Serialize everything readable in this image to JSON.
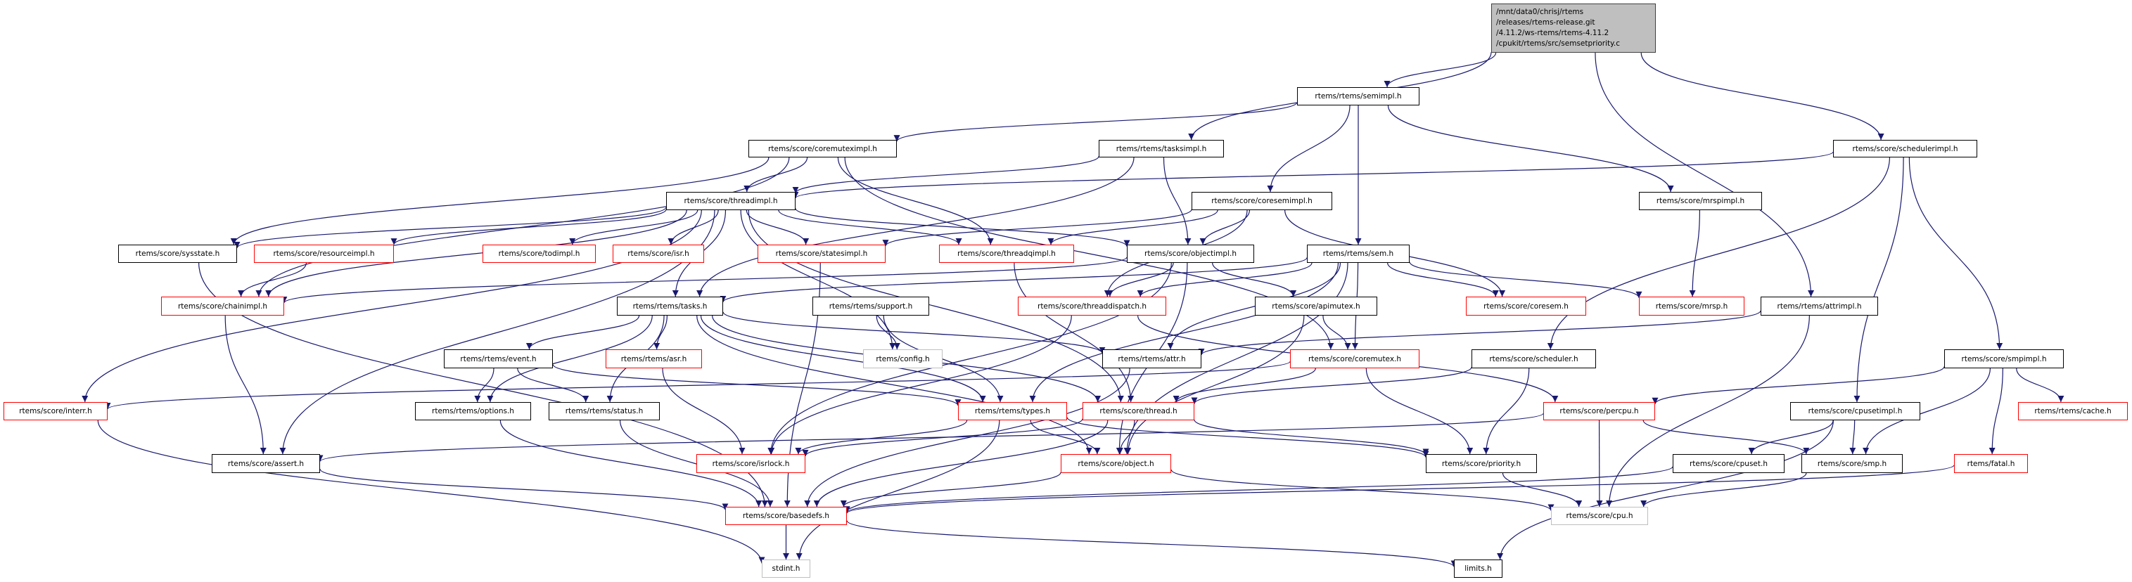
{
  "graph": {
    "edge_color": "#191970",
    "root": {
      "id": "root",
      "lines": [
        "/mnt/data0/chrisj/rtems",
        "/releases/rtems-release.git",
        "/4.11.2/ws-rtems/rtems-4.11.2",
        "/cpukit/rtems/src/semsetpriority.c"
      ],
      "fill": "#bfbfbf"
    },
    "node_styles": {
      "documented": "#000000",
      "truncated": "#ff0000",
      "system": "#bfbfbf"
    },
    "nodes": [
      {
        "id": "semimpl",
        "label": "rtems/rtems/semimpl.h",
        "style": "documented"
      },
      {
        "id": "tasksimpl",
        "label": "rtems/rtems/tasksimpl.h",
        "style": "documented"
      },
      {
        "id": "schedulerimpl",
        "label": "rtems/score/schedulerimpl.h",
        "style": "documented"
      },
      {
        "id": "coremuteximpl",
        "label": "rtems/score/coremuteximpl.h",
        "style": "documented"
      },
      {
        "id": "coresemimpl",
        "label": "rtems/score/coresemimpl.h",
        "style": "documented"
      },
      {
        "id": "mrspimpl",
        "label": "rtems/score/mrspimpl.h",
        "style": "documented"
      },
      {
        "id": "threadimpl",
        "label": "rtems/score/threadimpl.h",
        "style": "documented"
      },
      {
        "id": "objectimpl",
        "label": "rtems/score/objectimpl.h",
        "style": "documented"
      },
      {
        "id": "sem",
        "label": "rtems/rtems/sem.h",
        "style": "documented"
      },
      {
        "id": "sysstate",
        "label": "rtems/score/sysstate.h",
        "style": "documented"
      },
      {
        "id": "resourceimpl",
        "label": "rtems/score/resourceimpl.h",
        "style": "truncated"
      },
      {
        "id": "todimpl",
        "label": "rtems/score/todimpl.h",
        "style": "truncated"
      },
      {
        "id": "isr",
        "label": "rtems/score/isr.h",
        "style": "truncated"
      },
      {
        "id": "statesimpl",
        "label": "rtems/score/statesimpl.h",
        "style": "truncated"
      },
      {
        "id": "threadqimpl",
        "label": "rtems/score/threadqimpl.h",
        "style": "truncated"
      },
      {
        "id": "chainimpl",
        "label": "rtems/score/chainimpl.h",
        "style": "truncated"
      },
      {
        "id": "tasks",
        "label": "rtems/rtems/tasks.h",
        "style": "documented"
      },
      {
        "id": "support",
        "label": "rtems/rtems/support.h",
        "style": "documented"
      },
      {
        "id": "threaddispatch",
        "label": "rtems/score/threaddispatch.h",
        "style": "truncated"
      },
      {
        "id": "apimutex",
        "label": "rtems/score/apimutex.h",
        "style": "documented"
      },
      {
        "id": "coresem",
        "label": "rtems/score/coresem.h",
        "style": "truncated"
      },
      {
        "id": "mrsp",
        "label": "rtems/score/mrsp.h",
        "style": "truncated"
      },
      {
        "id": "attrimpl",
        "label": "rtems/rtems/attrimpl.h",
        "style": "documented"
      },
      {
        "id": "event",
        "label": "rtems/rtems/event.h",
        "style": "documented"
      },
      {
        "id": "asr",
        "label": "rtems/rtems/asr.h",
        "style": "truncated"
      },
      {
        "id": "config",
        "label": "rtems/config.h",
        "style": "system"
      },
      {
        "id": "attr",
        "label": "rtems/rtems/attr.h",
        "style": "documented"
      },
      {
        "id": "coremutex",
        "label": "rtems/score/coremutex.h",
        "style": "truncated"
      },
      {
        "id": "scheduler",
        "label": "rtems/score/scheduler.h",
        "style": "documented"
      },
      {
        "id": "smpimpl",
        "label": "rtems/score/smpimpl.h",
        "style": "documented"
      },
      {
        "id": "interr",
        "label": "rtems/score/interr.h",
        "style": "truncated"
      },
      {
        "id": "options",
        "label": "rtems/rtems/options.h",
        "style": "documented"
      },
      {
        "id": "status",
        "label": "rtems/rtems/status.h",
        "style": "documented"
      },
      {
        "id": "types",
        "label": "rtems/rtems/types.h",
        "style": "truncated"
      },
      {
        "id": "thread",
        "label": "rtems/score/thread.h",
        "style": "truncated"
      },
      {
        "id": "percpu",
        "label": "rtems/score/percpu.h",
        "style": "truncated"
      },
      {
        "id": "cpusetimpl",
        "label": "rtems/score/cpusetimpl.h",
        "style": "documented"
      },
      {
        "id": "cache",
        "label": "rtems/rtems/cache.h",
        "style": "truncated"
      },
      {
        "id": "assert",
        "label": "rtems/score/assert.h",
        "style": "documented"
      },
      {
        "id": "isrlock",
        "label": "rtems/score/isrlock.h",
        "style": "truncated"
      },
      {
        "id": "object",
        "label": "rtems/score/object.h",
        "style": "truncated"
      },
      {
        "id": "priority",
        "label": "rtems/score/priority.h",
        "style": "documented"
      },
      {
        "id": "cpuset",
        "label": "rtems/score/cpuset.h",
        "style": "documented"
      },
      {
        "id": "smp",
        "label": "rtems/score/smp.h",
        "style": "documented"
      },
      {
        "id": "fatal",
        "label": "rtems/fatal.h",
        "style": "truncated"
      },
      {
        "id": "basedefs",
        "label": "rtems/score/basedefs.h",
        "style": "truncated"
      },
      {
        "id": "cpu",
        "label": "rtems/score/cpu.h",
        "style": "system"
      },
      {
        "id": "stdint",
        "label": "stdint.h",
        "style": "system"
      },
      {
        "id": "limits",
        "label": "limits.h",
        "style": "documented"
      }
    ],
    "edges": [
      [
        "root",
        "semimpl"
      ],
      [
        "root",
        "tasksimpl"
      ],
      [
        "root",
        "schedulerimpl"
      ],
      [
        "root",
        "attrimpl"
      ],
      [
        "semimpl",
        "coremuteximpl"
      ],
      [
        "semimpl",
        "coresemimpl"
      ],
      [
        "semimpl",
        "sem"
      ],
      [
        "semimpl",
        "mrspimpl"
      ],
      [
        "tasksimpl",
        "threadimpl"
      ],
      [
        "tasksimpl",
        "objectimpl"
      ],
      [
        "tasksimpl",
        "tasks"
      ],
      [
        "schedulerimpl",
        "threadimpl"
      ],
      [
        "schedulerimpl",
        "scheduler"
      ],
      [
        "schedulerimpl",
        "cpusetimpl"
      ],
      [
        "schedulerimpl",
        "smpimpl"
      ],
      [
        "coremuteximpl",
        "threadimpl"
      ],
      [
        "coremuteximpl",
        "threadqimpl"
      ],
      [
        "coremuteximpl",
        "sysstate"
      ],
      [
        "coremuteximpl",
        "chainimpl"
      ],
      [
        "coremuteximpl",
        "coremutex"
      ],
      [
        "coresemimpl",
        "threadqimpl"
      ],
      [
        "coresemimpl",
        "objectimpl"
      ],
      [
        "coresemimpl",
        "statesimpl"
      ],
      [
        "coresemimpl",
        "coresem"
      ],
      [
        "coresemimpl",
        "threaddispatch"
      ],
      [
        "mrspimpl",
        "mrsp"
      ],
      [
        "threadimpl",
        "sysstate"
      ],
      [
        "threadimpl",
        "resourceimpl"
      ],
      [
        "threadimpl",
        "todimpl"
      ],
      [
        "threadimpl",
        "isr"
      ],
      [
        "threadimpl",
        "statesimpl"
      ],
      [
        "threadimpl",
        "threadqimpl"
      ],
      [
        "threadimpl",
        "objectimpl"
      ],
      [
        "threadimpl",
        "chainimpl"
      ],
      [
        "threadimpl",
        "interr"
      ],
      [
        "threadimpl",
        "assert"
      ],
      [
        "threadimpl",
        "config"
      ],
      [
        "threadimpl",
        "thread"
      ],
      [
        "threadimpl",
        "tasks"
      ],
      [
        "objectimpl",
        "threaddispatch"
      ],
      [
        "objectimpl",
        "apimutex"
      ],
      [
        "objectimpl",
        "object"
      ],
      [
        "objectimpl",
        "isrlock"
      ],
      [
        "objectimpl",
        "chainimpl"
      ],
      [
        "sem",
        "tasks"
      ],
      [
        "sem",
        "attr"
      ],
      [
        "sem",
        "coremutex"
      ],
      [
        "sem",
        "coresem"
      ],
      [
        "sem",
        "mrsp"
      ],
      [
        "sem",
        "object"
      ],
      [
        "sem",
        "types"
      ],
      [
        "sem",
        "threaddispatch"
      ],
      [
        "tasks",
        "event"
      ],
      [
        "tasks",
        "asr"
      ],
      [
        "tasks",
        "attr"
      ],
      [
        "tasks",
        "options"
      ],
      [
        "tasks",
        "status"
      ],
      [
        "tasks",
        "types"
      ],
      [
        "tasks",
        "thread"
      ],
      [
        "tasks",
        "object"
      ],
      [
        "support",
        "config"
      ],
      [
        "support",
        "types"
      ],
      [
        "threaddispatch",
        "percpu"
      ],
      [
        "threaddispatch",
        "isrlock"
      ],
      [
        "apimutex",
        "coremutex"
      ],
      [
        "apimutex",
        "object"
      ],
      [
        "attrimpl",
        "attr"
      ],
      [
        "attrimpl",
        "cpu"
      ],
      [
        "attr",
        "basedefs"
      ],
      [
        "coremutex",
        "thread"
      ],
      [
        "coremutex",
        "priority"
      ],
      [
        "coremutex",
        "interr"
      ],
      [
        "scheduler",
        "thread"
      ],
      [
        "scheduler",
        "priority"
      ],
      [
        "smpimpl",
        "percpu"
      ],
      [
        "smpimpl",
        "smp"
      ],
      [
        "smpimpl",
        "cache"
      ],
      [
        "smpimpl",
        "fatal"
      ],
      [
        "event",
        "options"
      ],
      [
        "event",
        "status"
      ],
      [
        "event",
        "types"
      ],
      [
        "asr",
        "isrlock"
      ],
      [
        "options",
        "basedefs"
      ],
      [
        "status",
        "basedefs"
      ],
      [
        "types",
        "object"
      ],
      [
        "types",
        "priority"
      ],
      [
        "types",
        "stdint"
      ],
      [
        "types",
        "isrlock"
      ],
      [
        "thread",
        "object"
      ],
      [
        "thread",
        "priority"
      ],
      [
        "thread",
        "isrlock"
      ],
      [
        "thread",
        "basedefs"
      ],
      [
        "percpu",
        "cpu"
      ],
      [
        "percpu",
        "smp"
      ],
      [
        "percpu",
        "assert"
      ],
      [
        "cpusetimpl",
        "cpuset"
      ],
      [
        "cpusetimpl",
        "smp"
      ],
      [
        "cpusetimpl",
        "limits"
      ],
      [
        "object",
        "basedefs"
      ],
      [
        "object",
        "cpu"
      ],
      [
        "priority",
        "cpu"
      ],
      [
        "cpuset",
        "basedefs"
      ],
      [
        "smp",
        "cpu"
      ],
      [
        "fatal",
        "basedefs"
      ],
      [
        "sysstate",
        "basedefs"
      ],
      [
        "chainimpl",
        "assert"
      ],
      [
        "resourceimpl",
        "chainimpl"
      ],
      [
        "statesimpl",
        "basedefs"
      ],
      [
        "threadqimpl",
        "thread"
      ],
      [
        "assert",
        "basedefs"
      ],
      [
        "interr",
        "stdint"
      ],
      [
        "basedefs",
        "stdint"
      ],
      [
        "basedefs",
        "limits"
      ]
    ]
  }
}
